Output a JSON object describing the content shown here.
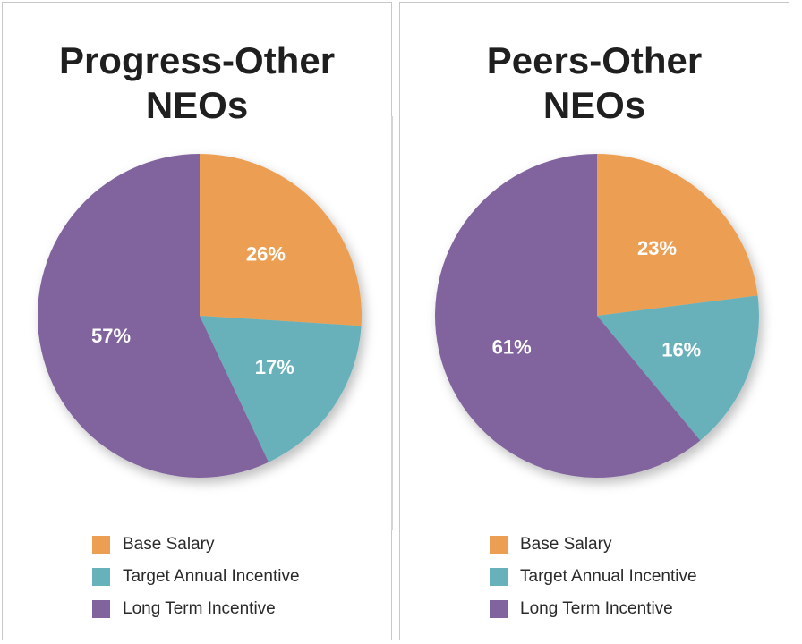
{
  "colors": {
    "base_salary": "#ec9f52",
    "target_annual_incentive": "#67b1bb",
    "long_term_incentive": "#81649e"
  },
  "chart_data": [
    {
      "type": "pie",
      "title_lines": [
        "Progress-Other",
        "NEOs"
      ],
      "categories": [
        "Base Salary",
        "Target Annual Incentive",
        "Long Term Incentive"
      ],
      "values": [
        26,
        17,
        57
      ],
      "labels": [
        "26%",
        "17%",
        "57%"
      ],
      "colors": [
        "#ec9f52",
        "#67b1bb",
        "#81649e"
      ],
      "legend": "bottom"
    },
    {
      "type": "pie",
      "title_lines": [
        "Peers-Other",
        "NEOs"
      ],
      "categories": [
        "Base Salary",
        "Target Annual Incentive",
        "Long Term Incentive"
      ],
      "values": [
        23,
        16,
        61
      ],
      "labels": [
        "23%",
        "16%",
        "61%"
      ],
      "colors": [
        "#ec9f52",
        "#67b1bb",
        "#81649e"
      ],
      "legend": "bottom"
    }
  ]
}
